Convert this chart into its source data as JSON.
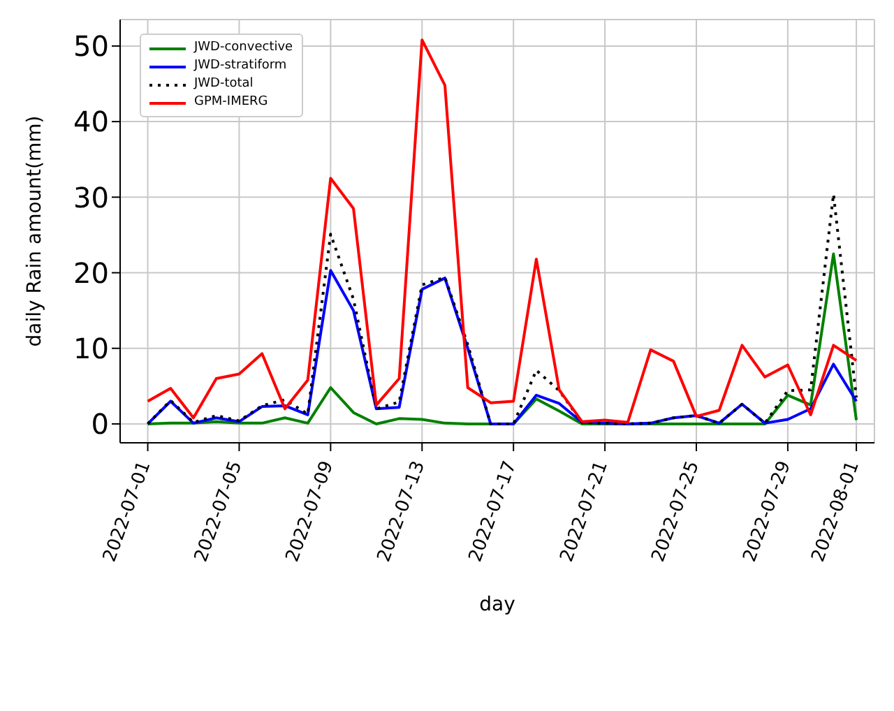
{
  "chart_data": {
    "type": "line",
    "xlabel": "day",
    "ylabel": "daily Rain amount(mm)",
    "x": [
      "2022-07-01",
      "2022-07-02",
      "2022-07-03",
      "2022-07-04",
      "2022-07-05",
      "2022-07-06",
      "2022-07-07",
      "2022-07-08",
      "2022-07-09",
      "2022-07-10",
      "2022-07-11",
      "2022-07-12",
      "2022-07-13",
      "2022-07-14",
      "2022-07-15",
      "2022-07-16",
      "2022-07-17",
      "2022-07-18",
      "2022-07-19",
      "2022-07-20",
      "2022-07-21",
      "2022-07-22",
      "2022-07-23",
      "2022-07-24",
      "2022-07-25",
      "2022-07-26",
      "2022-07-27",
      "2022-07-28",
      "2022-07-29",
      "2022-07-30",
      "2022-07-31",
      "2022-08-01"
    ],
    "series": [
      {
        "name": "JWD-convective",
        "color": "#008000",
        "line_style": "solid",
        "values": [
          0,
          0.1,
          0.1,
          0.3,
          0.1,
          0.1,
          0.8,
          0.1,
          4.8,
          1.5,
          0,
          0.7,
          0.6,
          0.1,
          0,
          0,
          0,
          3.3,
          1.7,
          0,
          0,
          0,
          0,
          0,
          0,
          0,
          0,
          0,
          3.8,
          2.5,
          22.5,
          0.5
        ]
      },
      {
        "name": "JWD-stratiform",
        "color": "#0000ff",
        "line_style": "solid",
        "values": [
          0,
          3.0,
          0.1,
          0.8,
          0.3,
          2.3,
          2.4,
          1.2,
          20.3,
          15.0,
          2.0,
          2.2,
          17.8,
          19.3,
          10.0,
          0,
          0,
          3.8,
          2.7,
          0.2,
          0.1,
          0,
          0.1,
          0.8,
          1.1,
          0.1,
          2.6,
          0.1,
          0.6,
          2.0,
          7.9,
          3.0
        ]
      },
      {
        "name": "JWD-total",
        "color": "#000000",
        "line_style": "dotted",
        "values": [
          0,
          3.1,
          0.2,
          1.1,
          0.4,
          2.4,
          3.2,
          1.3,
          25.1,
          16.5,
          2.0,
          2.9,
          18.4,
          19.4,
          10.5,
          0,
          0,
          7.1,
          4.4,
          0.2,
          0.1,
          0,
          0.1,
          0.8,
          1.1,
          0.1,
          2.6,
          0.1,
          4.4,
          4.5,
          30.4,
          3.5
        ]
      },
      {
        "name": "GPM-IMERG",
        "color": "#ff0000",
        "line_style": "solid",
        "values": [
          3.0,
          4.7,
          0.8,
          6.0,
          6.6,
          9.3,
          2.0,
          5.8,
          32.5,
          28.5,
          2.5,
          6.0,
          50.8,
          44.8,
          4.8,
          2.8,
          3.0,
          21.8,
          4.5,
          0.3,
          0.5,
          0.2,
          9.8,
          8.3,
          1.0,
          1.8,
          10.4,
          6.2,
          7.8,
          1.2,
          10.4,
          8.4
        ]
      }
    ],
    "xlim": [
      "2022-06-29T19:00",
      "2022-08-01T19:00"
    ],
    "xticks": [
      "2022-07-01",
      "2022-07-05",
      "2022-07-09",
      "2022-07-13",
      "2022-07-17",
      "2022-07-21",
      "2022-07-25",
      "2022-07-29",
      "2022-08-01"
    ],
    "ylim": [
      -2.5,
      53.5
    ],
    "yticks": [
      0,
      10,
      20,
      30,
      40,
      50
    ],
    "grid": true,
    "legend": "top left",
    "marker": "none"
  }
}
